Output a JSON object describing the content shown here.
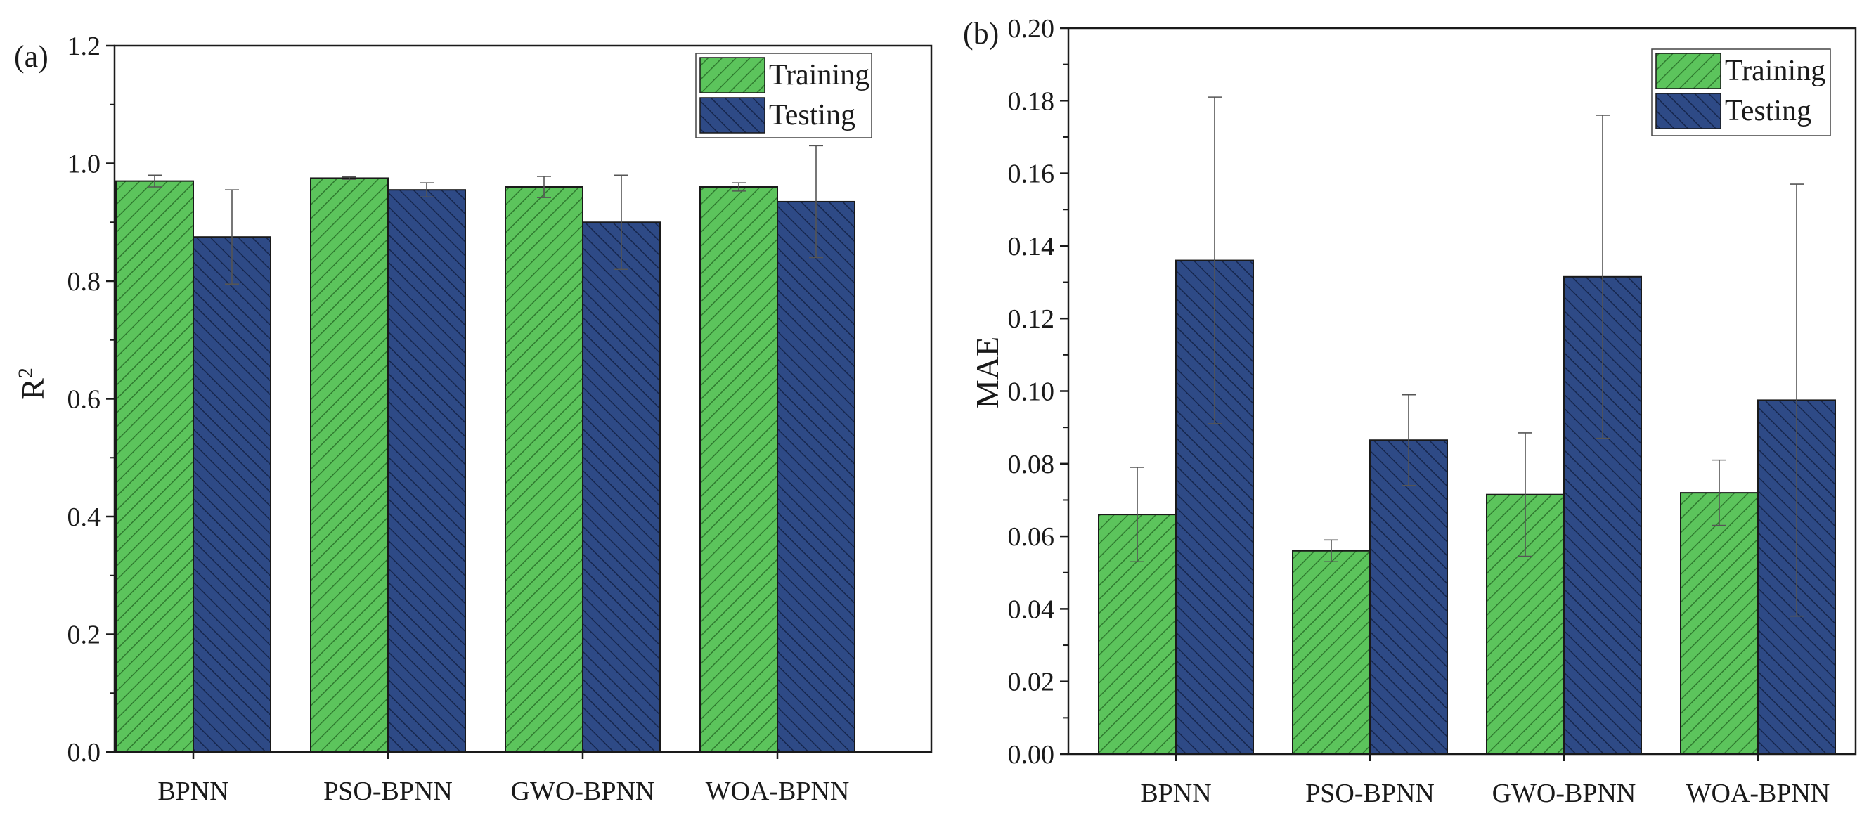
{
  "colors": {
    "training_fill": "#5cc45c",
    "training_hatch": "#2f7a2f",
    "testing_fill": "#2e4a86",
    "testing_hatch": "#16264d",
    "axis": "#1a1a1a",
    "errorbar": "#555555"
  },
  "chart_data": [
    {
      "type": "bar",
      "panel_label": "(a)",
      "ylabel": "R",
      "ylabel_sup": "2",
      "xlabel": "",
      "categories": [
        "BPNN",
        "PSO-BPNN",
        "GWO-BPNN",
        "WOA-BPNN"
      ],
      "ylim": [
        0.0,
        1.2
      ],
      "yticks": [
        "0.0",
        "0.2",
        "0.4",
        "0.6",
        "0.8",
        "1.0",
        "1.2"
      ],
      "legend_position": "top-right",
      "series": [
        {
          "name": "Training",
          "values": [
            0.97,
            0.975,
            0.96,
            0.96
          ],
          "errors": [
            0.01,
            0.002,
            0.018,
            0.007
          ]
        },
        {
          "name": "Testing",
          "values": [
            0.875,
            0.955,
            0.9,
            0.935
          ],
          "errors": [
            0.08,
            0.012,
            0.08,
            0.095
          ]
        }
      ]
    },
    {
      "type": "bar",
      "panel_label": "(b)",
      "ylabel": "MAE",
      "ylabel_sup": "",
      "xlabel": "",
      "categories": [
        "BPNN",
        "PSO-BPNN",
        "GWO-BPNN",
        "WOA-BPNN"
      ],
      "ylim": [
        0.0,
        0.2
      ],
      "yticks": [
        "0.00",
        "0.02",
        "0.04",
        "0.06",
        "0.08",
        "0.10",
        "0.12",
        "0.14",
        "0.16",
        "0.18",
        "0.20"
      ],
      "legend_position": "top-right",
      "series": [
        {
          "name": "Training",
          "values": [
            0.066,
            0.056,
            0.0715,
            0.072
          ],
          "errors": [
            0.013,
            0.003,
            0.017,
            0.009
          ]
        },
        {
          "name": "Testing",
          "values": [
            0.136,
            0.0865,
            0.1315,
            0.0975
          ],
          "errors": [
            0.045,
            0.0125,
            0.0445,
            0.0595
          ]
        }
      ]
    }
  ]
}
